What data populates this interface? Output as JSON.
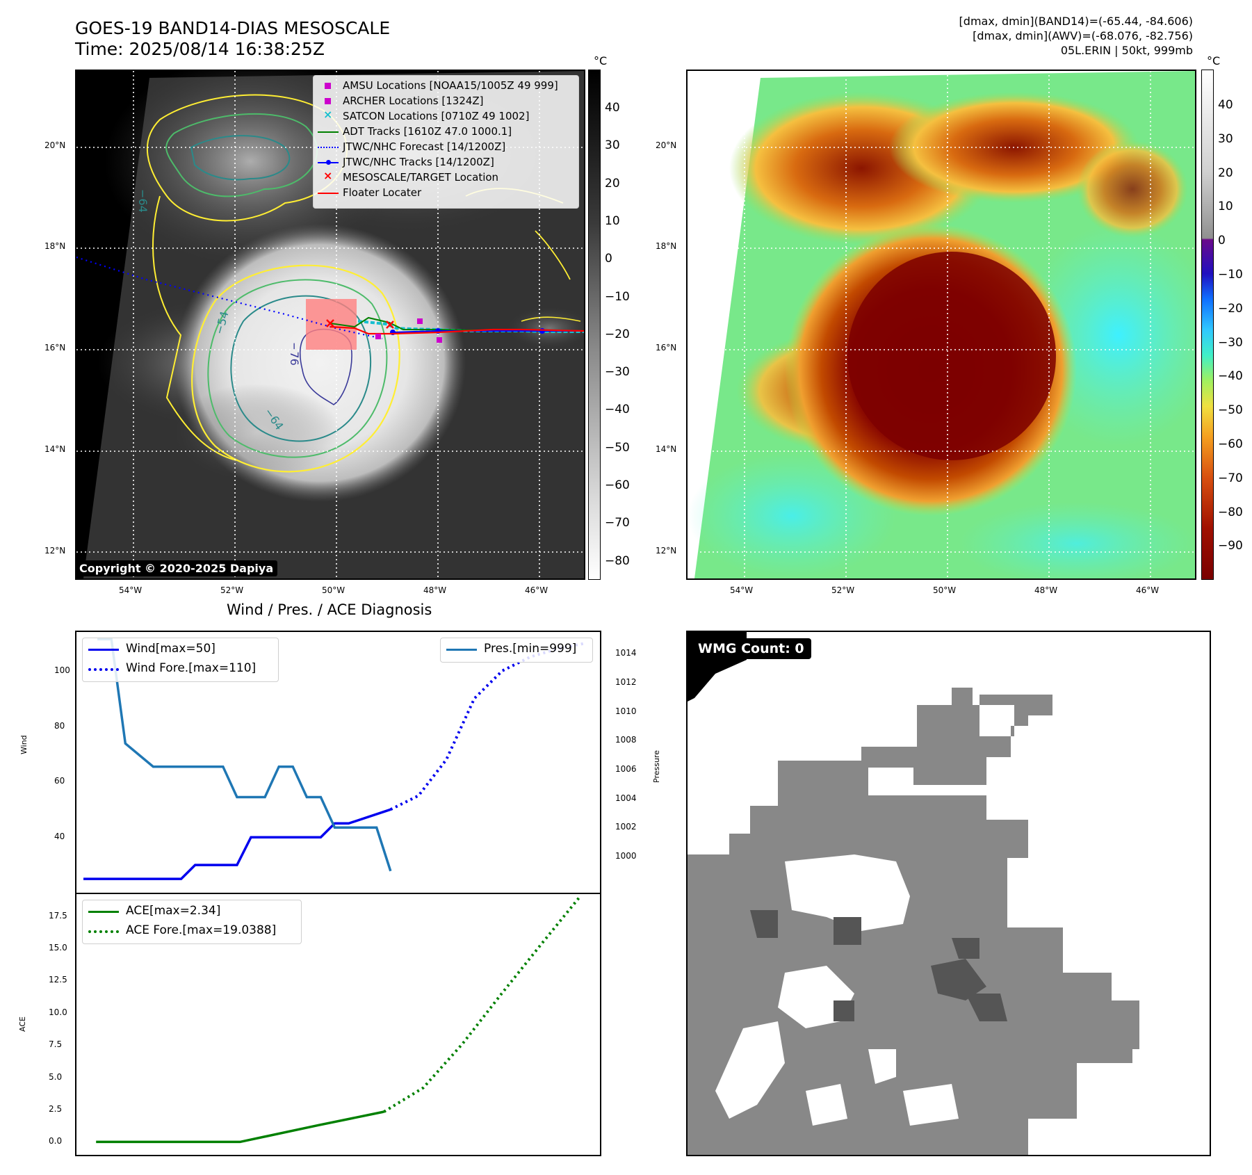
{
  "header": {
    "title_line1": "GOES-19 BAND14-DIAS MESOSCALE",
    "title_line2": "Time: 2025/08/14 16:38:25Z",
    "info_line1": "[dmax, dmin](BAND14)=(-65.44, -84.606)",
    "info_line2": "[dmax, dmin](AWV)=(-68.076, -82.756)",
    "info_line3": "05L.ERIN | 50kt, 999mb"
  },
  "ir_panel": {
    "unit": "°C",
    "colorbar_ticks": [
      "40",
      "30",
      "20",
      "10",
      "0",
      "−10",
      "−20",
      "−30",
      "−40",
      "−50",
      "−60",
      "−70",
      "−80"
    ],
    "lat_labels": [
      "20°N",
      "18°N",
      "16°N",
      "14°N",
      "12°N"
    ],
    "lon_labels": [
      "54°W",
      "52°W",
      "50°W",
      "48°W",
      "46°W"
    ],
    "contour_labels": [
      "−64",
      "−76",
      "−54",
      "−64"
    ],
    "copyright": "Copyright © 2020-2025 Dapiya",
    "legend": [
      {
        "label": "AMSU Locations [NOAA15/1005Z 49 999]",
        "color": "#cc00cc",
        "marker": "square"
      },
      {
        "label": "ARCHER Locations [1324Z]",
        "color": "#cc00cc",
        "marker": "square"
      },
      {
        "label": "SATCON Locations [0710Z 49 1002]",
        "color": "#17becf",
        "marker": "x"
      },
      {
        "label": "ADT Tracks [1610Z 47.0 1000.1]",
        "color": "#008000",
        "marker": "line"
      },
      {
        "label": "JTWC/NHC Forecast [14/1200Z]",
        "color": "#0000ff",
        "marker": "dotted"
      },
      {
        "label": "JTWC/NHC Tracks [14/1200Z]",
        "color": "#0000ff",
        "marker": "line-dot"
      },
      {
        "label": "MESOSCALE/TARGET Location",
        "color": "#ff0000",
        "marker": "x"
      },
      {
        "label": "Floater Locater",
        "color": "#ff0000",
        "marker": "line"
      }
    ]
  },
  "awv_panel": {
    "unit": "°C",
    "colorbar_ticks": [
      "40",
      "30",
      "20",
      "10",
      "0",
      "−10",
      "−20",
      "−30",
      "−40",
      "−50",
      "−60",
      "−70",
      "−80",
      "−90"
    ],
    "lat_labels": [
      "20°N",
      "18°N",
      "16°N",
      "14°N",
      "12°N"
    ],
    "lon_labels": [
      "54°W",
      "52°W",
      "50°W",
      "48°W",
      "46°W"
    ]
  },
  "wmg_panel": {
    "label": "WMG Count: 0"
  },
  "chart_data": [
    {
      "type": "line",
      "title": "Wind / Pres. / ACE Diagnosis",
      "ylabel": "Wind",
      "ylabel_right": "Pressure",
      "ylim": [
        20,
        114
      ],
      "ylim_right": [
        997.5,
        1015.5
      ],
      "yticks": [
        "40",
        "60",
        "80",
        "100"
      ],
      "yticks_right": [
        "1000",
        "1002",
        "1004",
        "1006",
        "1008",
        "1010",
        "1012",
        "1014"
      ],
      "legend_left": [
        "Wind[max=50]",
        "Wind Fore.[max=110]"
      ],
      "legend_right": [
        "Pres.[min=999]"
      ],
      "series": [
        {
          "name": "Wind[max=50]",
          "color": "#0000ee",
          "style": "solid",
          "x": [
            0,
            7,
            8,
            11,
            12,
            17,
            18,
            19,
            22
          ],
          "values": [
            25,
            25,
            30,
            30,
            40,
            40,
            45,
            45,
            50
          ]
        },
        {
          "name": "Wind Fore.[max=110]",
          "color": "#0000ee",
          "style": "dotted",
          "x": [
            22,
            24,
            26,
            28,
            30,
            32,
            34,
            36
          ],
          "values": [
            50,
            55,
            68,
            90,
            100,
            105,
            108,
            110
          ]
        },
        {
          "name": "Pres.[min=999]",
          "color": "#1f77b4",
          "style": "solid",
          "axis": "right",
          "x": [
            1,
            2,
            3,
            5,
            10,
            11,
            13,
            14,
            15,
            16,
            17,
            18,
            21,
            22
          ],
          "values": [
            1015,
            1015,
            1007.8,
            1006.2,
            1006.2,
            1004.1,
            1004.1,
            1006.2,
            1006.2,
            1004.1,
            1004.1,
            1002,
            1002,
            999
          ]
        }
      ],
      "xlim": [
        -0.5,
        37
      ]
    },
    {
      "type": "line",
      "ylabel": "ACE",
      "ylim": [
        -1,
        19.2
      ],
      "yticks": [
        "0.0",
        "2.5",
        "5.0",
        "7.5",
        "10.0",
        "12.5",
        "15.0",
        "17.5"
      ],
      "legend": [
        "ACE[max=2.34]",
        "ACE Fore.[max=19.0388]"
      ],
      "series": [
        {
          "name": "ACE[max=2.34]",
          "color": "#008000",
          "style": "solid",
          "x": [
            0,
            11,
            17,
            22
          ],
          "values": [
            0,
            0,
            1.3,
            2.34
          ]
        },
        {
          "name": "ACE Fore.[max=19.0388]",
          "color": "#008000",
          "style": "dotted",
          "x": [
            22,
            25,
            28,
            31,
            34,
            37
          ],
          "values": [
            2.34,
            4.2,
            7.6,
            11.5,
            15.3,
            19.04
          ]
        }
      ],
      "xlim": [
        -1.5,
        38.5
      ]
    }
  ]
}
